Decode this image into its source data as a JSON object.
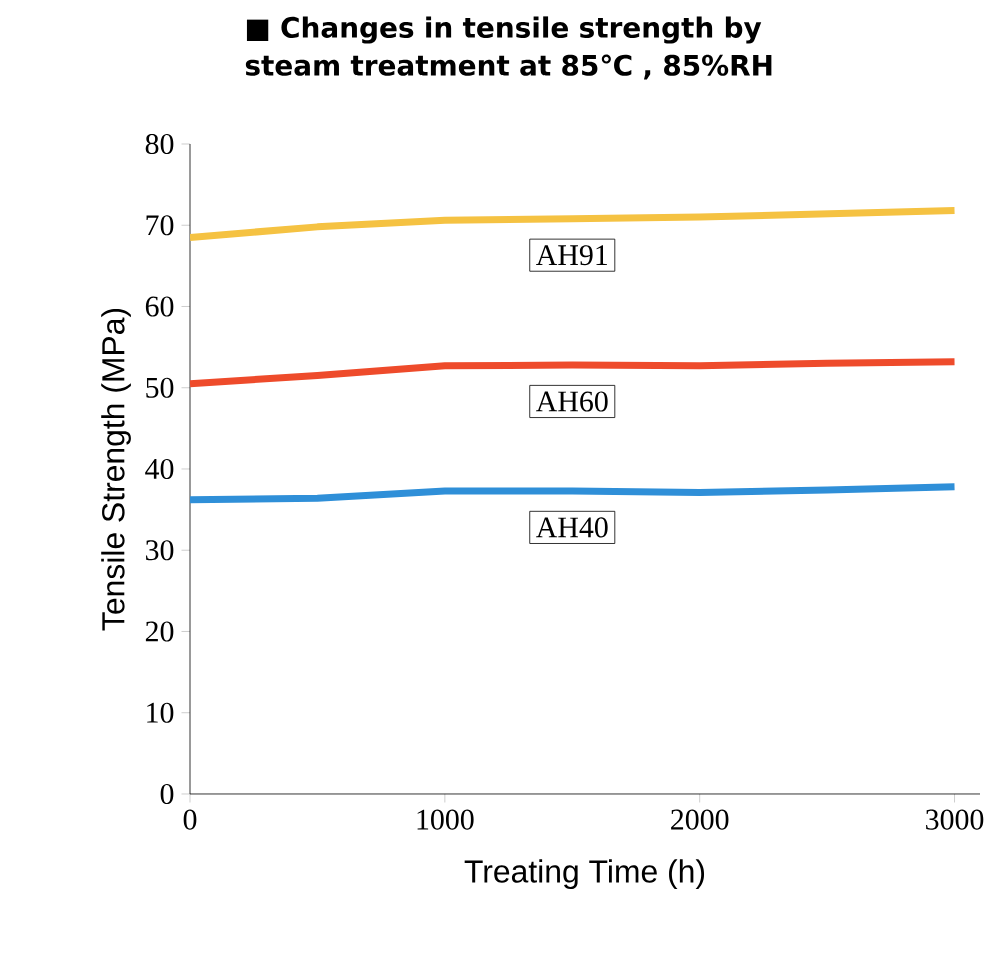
{
  "chart_data": {
    "type": "line",
    "title": "■ Changes in tensile strength by steam treatment at 85℃ , 85%RH",
    "xlabel": "Treating Time (h)",
    "ylabel": "Tensile Strength (MPa)",
    "x": [
      0,
      500,
      1000,
      1500,
      2000,
      2500,
      3000
    ],
    "series": [
      {
        "name": "AH91",
        "color": "#f5c242",
        "values": [
          68.5,
          69.8,
          70.6,
          70.8,
          71.0,
          71.4,
          71.8
        ]
      },
      {
        "name": "AH60",
        "color": "#ee4b2b",
        "values": [
          50.5,
          51.5,
          52.7,
          52.8,
          52.7,
          53.0,
          53.2
        ]
      },
      {
        "name": "AH40",
        "color": "#2f8fd8",
        "values": [
          36.2,
          36.4,
          37.3,
          37.3,
          37.1,
          37.4,
          37.8
        ]
      }
    ],
    "xlim": [
      0,
      3100
    ],
    "xticks": [
      0,
      1000,
      2000,
      3000
    ],
    "ylim": [
      0,
      80
    ],
    "yticks": [
      0,
      10,
      20,
      30,
      40,
      50,
      60,
      70,
      80
    ],
    "legend": false,
    "grid": false,
    "marker": "none",
    "line_style": "solid"
  }
}
